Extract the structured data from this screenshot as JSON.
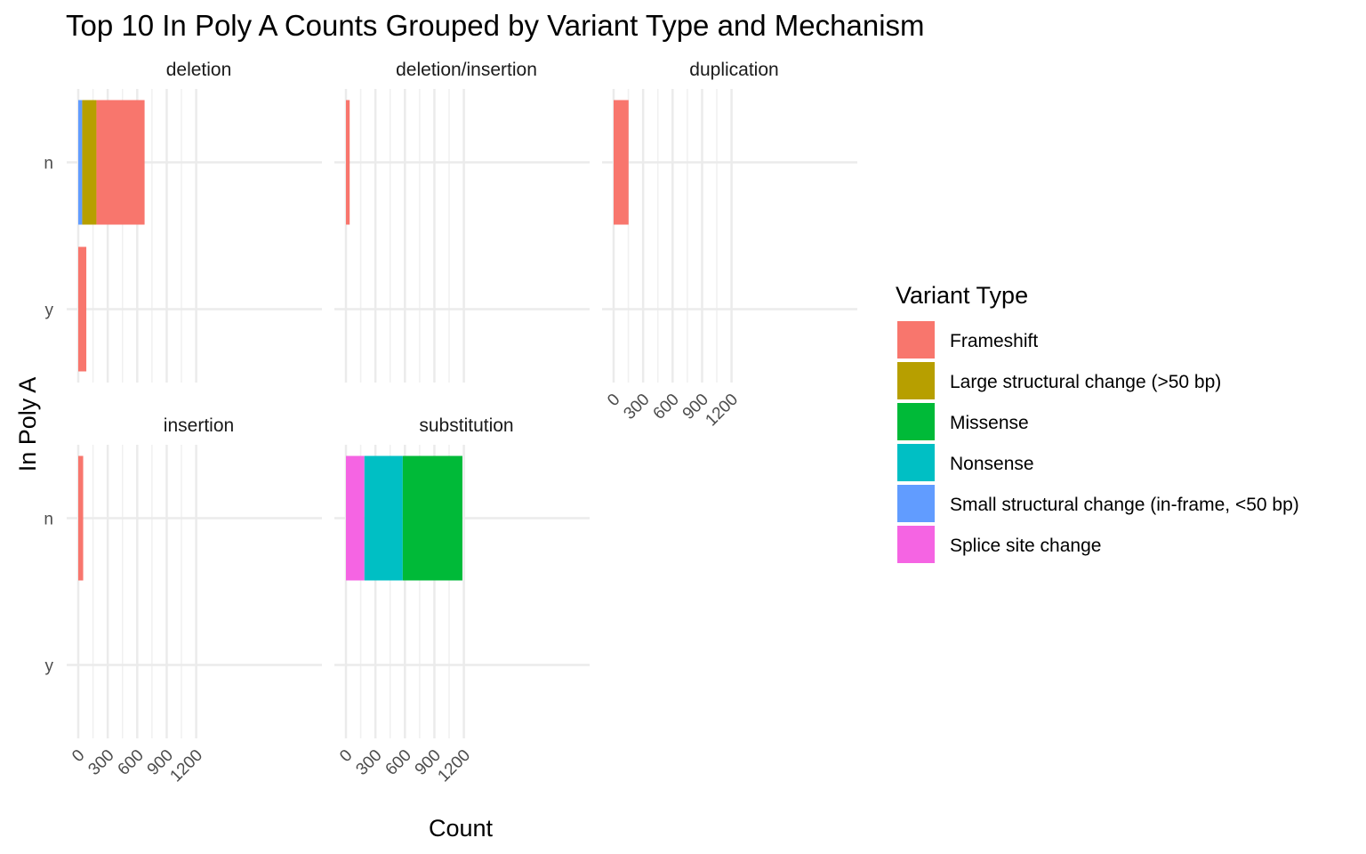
{
  "chart_data": {
    "type": "bar",
    "orientation": "horizontal",
    "stacked": true,
    "title": "Top 10 In Poly A Counts Grouped by Variant Type and Mechanism",
    "xlabel": "Count",
    "ylabel": "In Poly A",
    "xlim": [
      0,
      1230
    ],
    "x_ticks": [
      0,
      300,
      600,
      900,
      1200
    ],
    "categories": [
      "n",
      "y"
    ],
    "grid": true,
    "legend": {
      "title": "Variant Type",
      "position": "right",
      "entries": [
        {
          "name": "Frameshift",
          "color": "#F8766D"
        },
        {
          "name": "Large structural change (>50 bp)",
          "color": "#B79F00"
        },
        {
          "name": "Missense",
          "color": "#00BA38"
        },
        {
          "name": "Nonsense",
          "color": "#00BFC4"
        },
        {
          "name": "Small structural change (in-frame, <50 bp)",
          "color": "#619CFF"
        },
        {
          "name": "Splice site change",
          "color": "#F564E3"
        }
      ]
    },
    "panels": [
      {
        "name": "deletion",
        "bars": [
          {
            "category": "n",
            "segments": [
              {
                "type": "Small structural change (in-frame, <50 bp)",
                "value": 40
              },
              {
                "type": "Large structural change (>50 bp)",
                "value": 145
              },
              {
                "type": "Frameshift",
                "value": 490
              }
            ]
          },
          {
            "category": "y",
            "segments": [
              {
                "type": "Frameshift",
                "value": 82
              }
            ]
          }
        ]
      },
      {
        "name": "deletion/insertion",
        "bars": [
          {
            "category": "n",
            "segments": [
              {
                "type": "Frameshift",
                "value": 38
              }
            ]
          }
        ]
      },
      {
        "name": "duplication",
        "bars": [
          {
            "category": "n",
            "segments": [
              {
                "type": "Frameshift",
                "value": 152
              }
            ]
          }
        ]
      },
      {
        "name": "insertion",
        "bars": [
          {
            "category": "n",
            "segments": [
              {
                "type": "Frameshift",
                "value": 50
              }
            ]
          }
        ]
      },
      {
        "name": "substitution",
        "bars": [
          {
            "category": "n",
            "segments": [
              {
                "type": "Splice site change",
                "value": 188
              },
              {
                "type": "Nonsense",
                "value": 390
              },
              {
                "type": "Missense",
                "value": 607
              }
            ]
          }
        ]
      }
    ]
  }
}
